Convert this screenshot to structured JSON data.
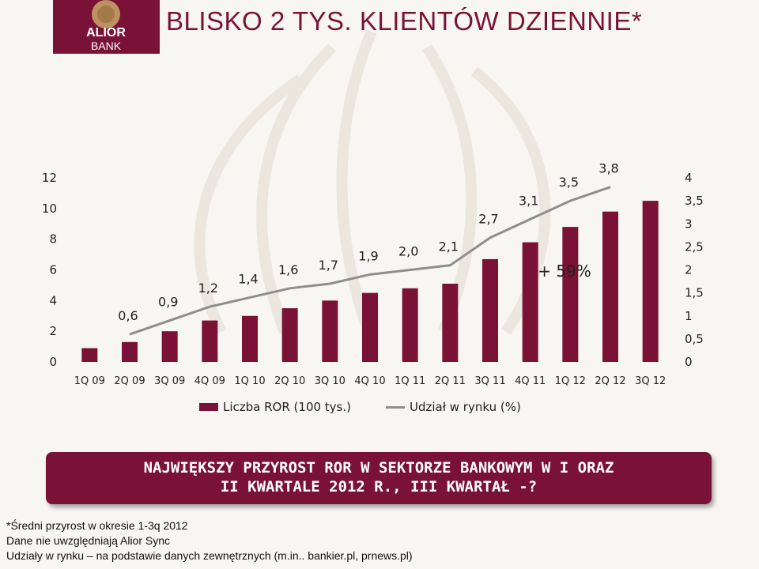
{
  "header": {
    "title": "BLISKO 2 TYS. KLIENTÓW DZIENNIE*",
    "logo_text": [
      "ALIOR",
      "BANK"
    ]
  },
  "colors": {
    "bar": "#7a1237",
    "line": "#8e8e8e",
    "banner": "#7a1237",
    "logo_bg": "#7a1237",
    "logo_gold": "#c9a86a"
  },
  "chart_data": {
    "type": "bar",
    "categories": [
      "1Q 09",
      "2Q 09",
      "3Q 09",
      "4Q 09",
      "1Q 10",
      "2Q 10",
      "3Q 10",
      "4Q 10",
      "1Q 11",
      "2Q 11",
      "3Q 11",
      "4Q 11",
      "1Q 12",
      "2Q 12",
      "3Q 12"
    ],
    "series": [
      {
        "name": "Liczba ROR (100 tys.)",
        "type": "bar",
        "axis": "left",
        "values": [
          0.9,
          1.3,
          2.0,
          2.7,
          3.0,
          3.5,
          4.0,
          4.5,
          4.8,
          5.1,
          6.7,
          7.8,
          8.8,
          9.8,
          10.5
        ]
      },
      {
        "name": "Udział w rynku (%)",
        "type": "line",
        "axis": "right",
        "values": [
          null,
          0.6,
          0.9,
          1.2,
          1.4,
          1.6,
          1.7,
          1.9,
          2.0,
          2.1,
          2.7,
          3.1,
          3.5,
          3.8,
          null
        ],
        "labels": [
          "",
          "0,6",
          "0,9",
          "1,2",
          "1,4",
          "1,6",
          "1,7",
          "1,9",
          "2,0",
          "2,1",
          "2,7",
          "3,1",
          "3,5",
          "3,8",
          ""
        ]
      }
    ],
    "ylim_left": [
      0,
      12
    ],
    "ylim_right": [
      0,
      4
    ],
    "left_ticks": [
      "0",
      "2",
      "4",
      "6",
      "8",
      "10",
      "12"
    ],
    "right_ticks": [
      "0",
      "0,5",
      "1",
      "1,5",
      "2",
      "2,5",
      "3",
      "3,5",
      "4"
    ],
    "annotation": "+ 59%",
    "legend": {
      "placement": "bottom",
      "bar_label": "Liczba ROR (100 tys.)",
      "line_label": "Udział w rynku (%)"
    }
  },
  "banner": {
    "line1": "NAJWIĘKSZY PRZYROST ROR W SEKTORZE BANKOWYM W I ORAZ",
    "line2": "II KWARTALE 2012 R., III KWARTAŁ -?"
  },
  "footnotes": [
    "*Średni przyrost w okresie 1-3q 2012",
    "Dane nie uwzględniają Alior Sync",
    "Udziały w rynku – na podstawie danych zewnętrznych (m.in.. bankier.pl, prnews.pl)"
  ]
}
